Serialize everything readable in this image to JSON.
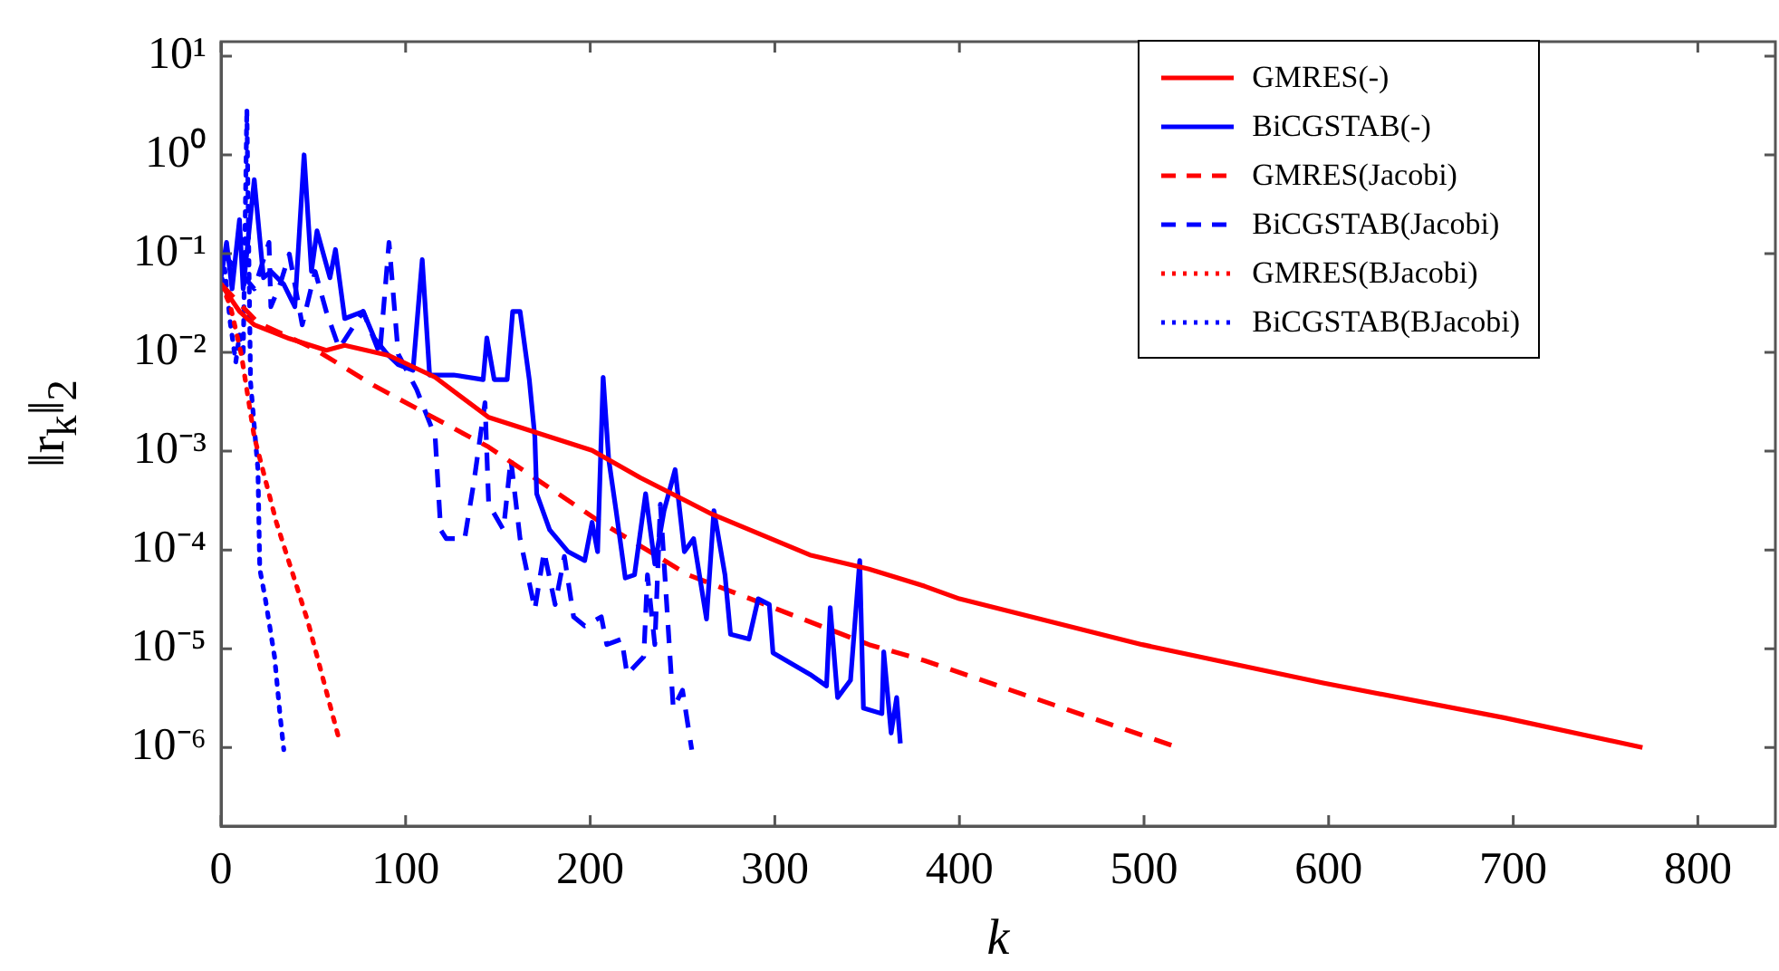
{
  "chart_data": {
    "type": "line",
    "xlabel": "k",
    "ylabel": "‖r$_{k}$‖$_{2}$",
    "log": "y",
    "grid": false,
    "legend": "top right",
    "marker": "none",
    "xlim": [
      0,
      842
    ],
    "xticks": [
      0,
      100,
      200,
      300,
      400,
      500,
      600,
      700,
      800
    ],
    "ylim": [
      1.6e-07,
      14
    ],
    "yticks": [
      {
        "value": 1e-06,
        "label": "10⁻⁶"
      },
      {
        "value": 1e-05,
        "label": "10⁻⁵"
      },
      {
        "value": 0.0001,
        "label": "10⁻⁴"
      },
      {
        "value": 0.001,
        "label": "10⁻³"
      },
      {
        "value": 0.01,
        "label": "10⁻²"
      },
      {
        "value": 0.1,
        "label": "10⁻¹"
      },
      {
        "value": 1,
        "label": "10⁰"
      },
      {
        "value": 10,
        "label": "10¹"
      }
    ],
    "series": [
      {
        "name": "GMRES(-)",
        "color": "#ff0000",
        "line_style": "solid",
        "x": [
          0,
          10,
          18,
          37,
          57,
          67,
          91,
          116,
          145,
          201,
          227,
          266,
          319,
          351,
          381,
          400,
          499,
          597,
          695,
          770
        ],
        "values": [
          0.049,
          0.026,
          0.019,
          0.0138,
          0.0105,
          0.0118,
          0.0093,
          0.0056,
          0.0022,
          0.00102,
          0.00054,
          0.00023,
          8.9e-05,
          6.4e-05,
          4.3e-05,
          3.2e-05,
          1.1e-05,
          4.5e-06,
          2e-06,
          1e-06
        ]
      },
      {
        "name": "BiCGSTAB(-)",
        "color": "#0000ff",
        "line_style": "solid",
        "x": [
          0,
          3,
          6,
          10,
          12,
          18,
          23,
          27,
          34,
          40,
          45,
          49,
          52,
          59,
          62,
          67,
          77,
          83,
          90,
          96,
          104,
          109,
          113,
          126,
          142,
          144,
          148,
          155,
          158,
          162,
          167,
          170,
          171,
          178,
          188,
          197,
          201,
          204,
          207,
          210,
          214,
          219,
          224,
          230,
          235,
          240,
          246,
          251,
          256,
          263,
          267,
          273,
          276,
          286,
          291,
          297,
          299,
          319,
          328,
          330,
          334,
          341,
          346,
          348,
          358,
          359,
          363,
          366,
          368
        ],
        "values": [
          0.057,
          0.13,
          0.044,
          0.22,
          0.044,
          0.56,
          0.057,
          0.066,
          0.049,
          0.029,
          1.0,
          0.066,
          0.17,
          0.057,
          0.11,
          0.022,
          0.026,
          0.014,
          0.0096,
          0.0075,
          0.0066,
          0.087,
          0.0059,
          0.0059,
          0.0053,
          0.014,
          0.0053,
          0.0053,
          0.026,
          0.026,
          0.0053,
          0.0014,
          0.00037,
          0.00016,
          9.6e-05,
          7.8e-05,
          0.00019,
          9.6e-05,
          0.0056,
          0.00083,
          0.00025,
          5.2e-05,
          5.6e-05,
          0.00037,
          7.2e-05,
          0.00025,
          0.00065,
          9.6e-05,
          0.00013,
          2e-05,
          0.00025,
          5.6e-05,
          1.4e-05,
          1.25e-05,
          3.2e-05,
          2.8e-05,
          9.1e-06,
          5.5e-06,
          4.2e-06,
          2.6e-05,
          3.2e-06,
          4.8e-06,
          7.8e-05,
          2.5e-06,
          2.2e-06,
          9.3e-06,
          1.4e-06,
          3.2e-06,
          1.1e-06
        ]
      },
      {
        "name": "GMRES(Jacobi)",
        "color": "#ff0000",
        "line_style": "dashed",
        "x": [
          0,
          20,
          50,
          83,
          145,
          204,
          253,
          351,
          381,
          515
        ],
        "values": [
          0.049,
          0.02,
          0.011,
          0.0046,
          0.0011,
          0.0002,
          5.6e-05,
          1.1e-05,
          7.6e-06,
          1.05e-06
        ]
      },
      {
        "name": "BiCGSTAB(Jacobi)",
        "color": "#0000ff",
        "line_style": "dashed",
        "x": [
          0,
          3,
          10,
          18,
          26,
          27,
          32,
          37,
          44,
          51,
          57,
          64,
          77,
          86,
          91,
          96,
          106,
          116,
          119,
          122,
          132,
          137,
          143,
          145,
          153,
          157,
          162,
          170,
          175,
          181,
          186,
          191,
          197,
          206,
          209,
          217,
          220,
          229,
          231,
          235,
          238,
          245,
          250,
          255
        ],
        "values": [
          0.1,
          0.09,
          0.066,
          0.044,
          0.13,
          0.029,
          0.049,
          0.099,
          0.019,
          0.066,
          0.026,
          0.011,
          0.026,
          0.0096,
          0.13,
          0.0096,
          0.0042,
          0.0014,
          0.00016,
          0.00013,
          0.00013,
          0.00049,
          0.0031,
          0.00029,
          0.00016,
          0.00083,
          0.00013,
          2.5e-05,
          9.6e-05,
          2.8e-05,
          8.6e-05,
          2.1e-05,
          1.7e-05,
          2.1e-05,
          1.1e-05,
          1.25e-05,
          5.5e-06,
          8.3e-06,
          5.6e-05,
          1.1e-05,
          0.00029,
          2.5e-06,
          3.8e-06,
          9.5e-07
        ]
      },
      {
        "name": "GMRES(BJacobi)",
        "color": "#ff0000",
        "line_style": "dotted",
        "x": [
          0,
          5,
          11,
          18,
          30,
          47,
          64
        ],
        "values": [
          0.049,
          0.03,
          0.0095,
          0.0014,
          0.00019,
          1.9e-05,
          1.2e-06
        ]
      },
      {
        "name": "BiCGSTAB(BJacobi)",
        "color": "#0000ff",
        "line_style": "dotted",
        "x": [
          0,
          2,
          5,
          8,
          10,
          12,
          14,
          16,
          20,
          21,
          24,
          29,
          32,
          34
        ],
        "values": [
          0.05,
          0.07,
          0.02,
          0.008,
          0.015,
          0.009,
          2.9,
          0.005,
          0.00065,
          6.4e-05,
          3.2e-05,
          8.3e-06,
          2.1e-06,
          9.5e-07
        ]
      }
    ]
  }
}
